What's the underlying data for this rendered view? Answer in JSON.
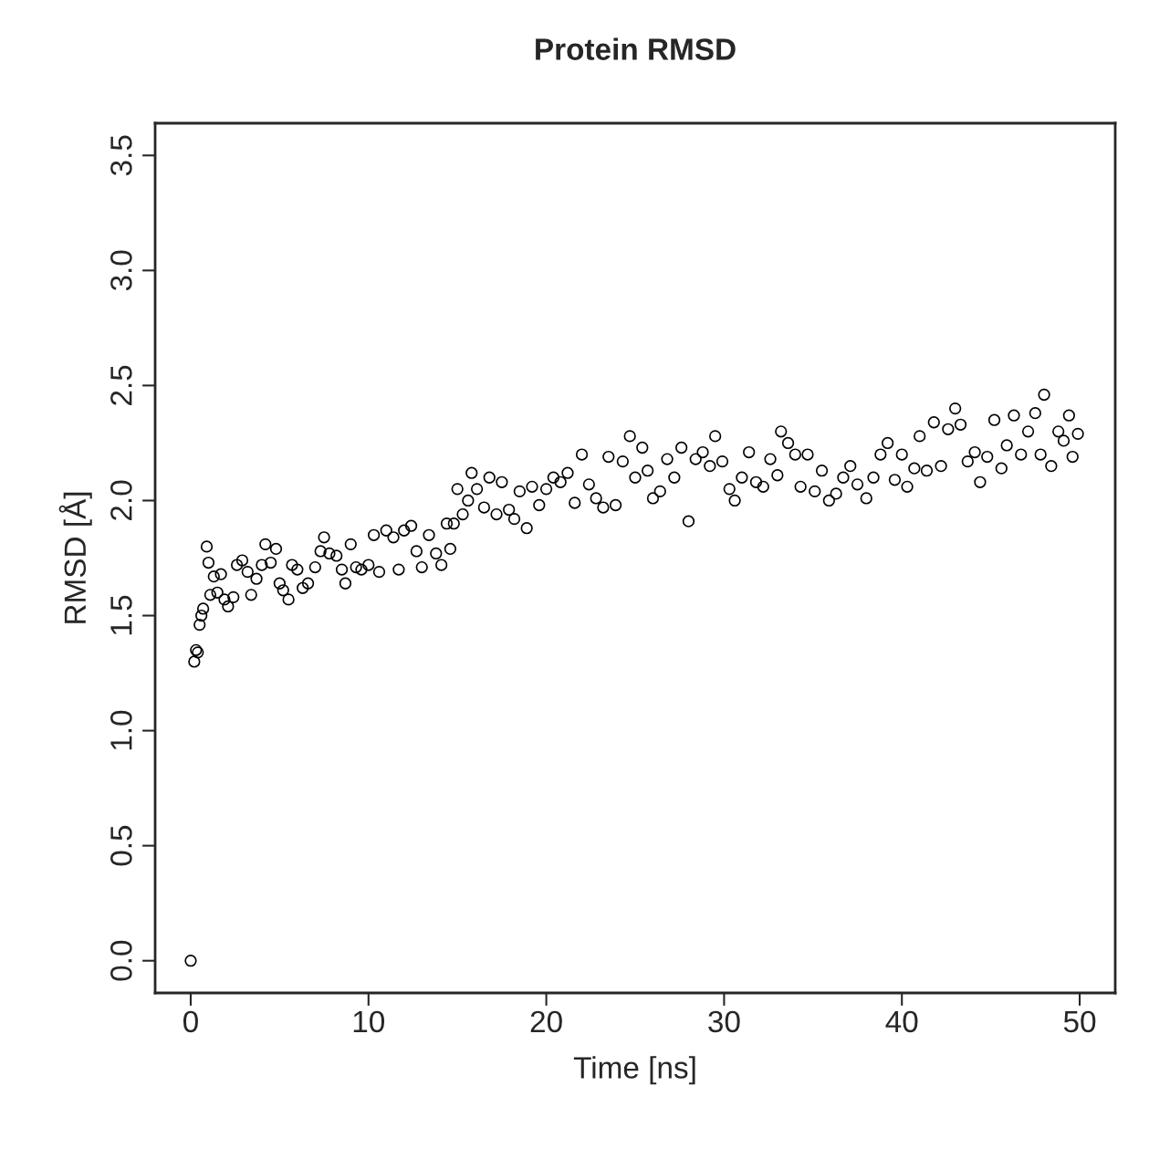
{
  "chart_data": {
    "type": "scatter",
    "title": "Protein RMSD",
    "xlabel": "Time [ns]",
    "ylabel": "RMSD [Å]",
    "marker": "circle",
    "grid": false,
    "legend": false,
    "xlim": [
      -2,
      52
    ],
    "ylim": [
      -0.14,
      3.64
    ],
    "xticks": [
      0,
      10,
      20,
      30,
      40,
      50
    ],
    "yticks": [
      {
        "value": 0,
        "label": "0.0"
      },
      {
        "value": 0.5,
        "label": "0.5"
      },
      {
        "value": 1,
        "label": "1.0"
      },
      {
        "value": 1.5,
        "label": "1.5"
      },
      {
        "value": 2,
        "label": "2.0"
      },
      {
        "value": 2.5,
        "label": "2.5"
      },
      {
        "value": 3,
        "label": "3.0"
      },
      {
        "value": 3.5,
        "label": "3.5"
      }
    ],
    "series": [
      {
        "color": "#000000",
        "x": [
          0,
          0.2,
          0.3,
          0.4,
          0.5,
          0.6,
          0.7,
          0.9,
          1.0,
          1.1,
          1.3,
          1.5,
          1.7,
          1.9,
          2.1,
          2.4,
          2.6,
          2.9,
          3.2,
          3.4,
          3.7,
          4.0,
          4.2,
          4.5,
          4.8,
          5.0,
          5.2,
          5.5,
          5.7,
          6.0,
          6.3,
          6.6,
          7.0,
          7.3,
          7.5,
          7.8,
          8.2,
          8.5,
          8.7,
          9.0,
          9.3,
          9.6,
          10.0,
          10.3,
          10.6,
          11.0,
          11.4,
          11.7,
          12.0,
          12.4,
          12.7,
          13.0,
          13.4,
          13.8,
          14.1,
          14.4,
          14.6,
          14.8,
          15.0,
          15.3,
          15.6,
          15.8,
          16.1,
          16.5,
          16.8,
          17.2,
          17.5,
          17.9,
          18.2,
          18.5,
          18.9,
          19.2,
          19.6,
          20.0,
          20.4,
          20.8,
          21.2,
          21.6,
          22.0,
          22.4,
          22.8,
          23.2,
          23.5,
          23.9,
          24.3,
          24.7,
          25.0,
          25.4,
          25.7,
          26.0,
          26.4,
          26.8,
          27.2,
          27.6,
          28.0,
          28.4,
          28.8,
          29.2,
          29.5,
          29.9,
          30.3,
          30.6,
          31.0,
          31.4,
          31.8,
          32.2,
          32.6,
          33.0,
          33.2,
          33.6,
          34.0,
          34.3,
          34.7,
          35.1,
          35.5,
          35.9,
          36.3,
          36.7,
          37.1,
          37.5,
          38.0,
          38.4,
          38.8,
          39.2,
          39.6,
          40.0,
          40.3,
          40.7,
          41.0,
          41.4,
          41.8,
          42.2,
          42.6,
          43.0,
          43.3,
          43.7,
          44.1,
          44.4,
          44.8,
          45.2,
          45.6,
          45.9,
          46.3,
          46.7,
          47.1,
          47.5,
          47.8,
          48.0,
          48.4,
          48.8,
          49.1,
          49.4,
          49.6,
          49.9
        ],
        "values": [
          0,
          1.3,
          1.35,
          1.34,
          1.46,
          1.5,
          1.53,
          1.8,
          1.73,
          1.59,
          1.67,
          1.6,
          1.68,
          1.57,
          1.54,
          1.58,
          1.72,
          1.74,
          1.69,
          1.59,
          1.66,
          1.72,
          1.81,
          1.73,
          1.79,
          1.64,
          1.61,
          1.57,
          1.72,
          1.7,
          1.62,
          1.64,
          1.71,
          1.78,
          1.84,
          1.77,
          1.76,
          1.7,
          1.64,
          1.81,
          1.71,
          1.7,
          1.72,
          1.85,
          1.69,
          1.87,
          1.84,
          1.7,
          1.87,
          1.89,
          1.78,
          1.71,
          1.85,
          1.77,
          1.72,
          1.9,
          1.79,
          1.9,
          2.05,
          1.94,
          2.0,
          2.12,
          2.05,
          1.97,
          2.1,
          1.94,
          2.08,
          1.96,
          1.92,
          2.04,
          1.88,
          2.06,
          1.98,
          2.05,
          2.1,
          2.08,
          2.12,
          1.99,
          2.2,
          2.07,
          2.01,
          1.97,
          2.19,
          1.98,
          2.17,
          2.28,
          2.1,
          2.23,
          2.13,
          2.01,
          2.04,
          2.18,
          2.1,
          2.23,
          1.91,
          2.18,
          2.21,
          2.15,
          2.28,
          2.17,
          2.05,
          2.0,
          2.1,
          2.21,
          2.08,
          2.06,
          2.18,
          2.11,
          2.3,
          2.25,
          2.2,
          2.06,
          2.2,
          2.04,
          2.13,
          2.0,
          2.03,
          2.1,
          2.15,
          2.07,
          2.01,
          2.1,
          2.2,
          2.25,
          2.09,
          2.2,
          2.06,
          2.14,
          2.28,
          2.13,
          2.34,
          2.15,
          2.31,
          2.4,
          2.33,
          2.17,
          2.21,
          2.08,
          2.19,
          2.35,
          2.14,
          2.24,
          2.37,
          2.2,
          2.3,
          2.38,
          2.2,
          2.46,
          2.15,
          2.3,
          2.26,
          2.37,
          2.19,
          2.29
        ]
      }
    ]
  }
}
